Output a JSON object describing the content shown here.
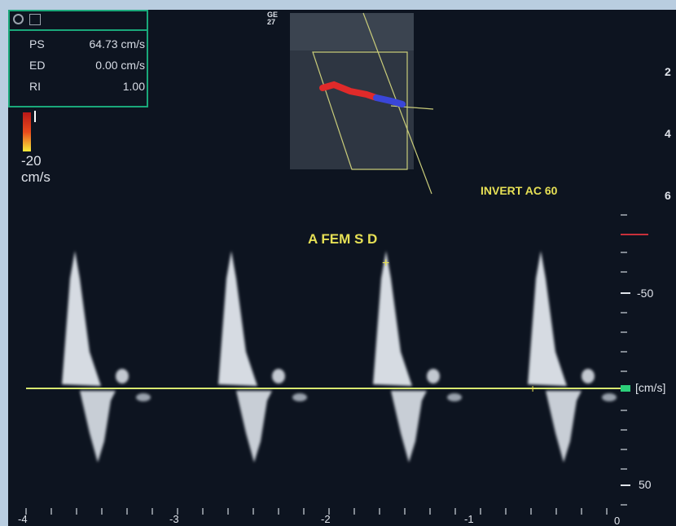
{
  "measurements": [
    {
      "key": "PS",
      "value": "64.73 cm/s"
    },
    {
      "key": "ED",
      "value": "0.00 cm/s"
    },
    {
      "key": "RI",
      "value": "1.00"
    }
  ],
  "color_scale": {
    "value": "-20",
    "unit": "cm/s"
  },
  "probe_label": "GE 27",
  "settings": "INVERT AC 60",
  "vessel_label": "A FEM S D",
  "depth_ticks": [
    "2",
    "4",
    "6"
  ],
  "velocity_scale": {
    "upper": "-50",
    "lower": "50",
    "unit": "[cm/s]"
  },
  "time_axis": [
    "-4",
    "-3",
    "-2",
    "-1",
    "0"
  ],
  "colors": {
    "background": "#0d1420",
    "frame": "#b9cde0",
    "baseline": "#d8e870",
    "box_border": "#1aa87a",
    "label": "#e6e055"
  }
}
